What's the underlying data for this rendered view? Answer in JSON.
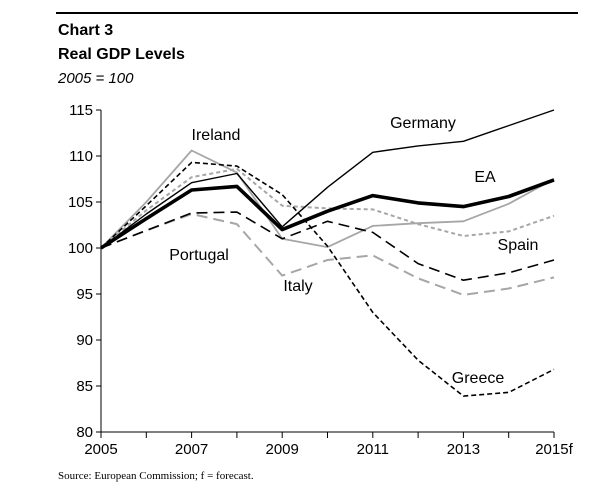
{
  "header": {
    "chart_number": "Chart 3",
    "title": "Real GDP Levels",
    "subtitle": "2005 = 100"
  },
  "source": "Source: European Commission; f = forecast.",
  "chart_data": {
    "type": "line",
    "x": [
      2005,
      2006,
      2007,
      2008,
      2009,
      2010,
      2011,
      2012,
      2013,
      2014,
      2015
    ],
    "x_tick_labels": [
      "2005",
      "2007",
      "2009",
      "2011",
      "2013",
      "2015f"
    ],
    "x_tick_values": [
      2005,
      2007,
      2009,
      2011,
      2013,
      2015
    ],
    "ylim": [
      80,
      115
    ],
    "y_ticks": [
      80,
      85,
      90,
      95,
      100,
      105,
      110,
      115
    ],
    "xlabel": "",
    "ylabel": "",
    "grid": false,
    "series": [
      {
        "name": "Germany",
        "color": "#000000",
        "style": "solid-thin",
        "values": [
          100,
          103.7,
          107.1,
          108.1,
          102.3,
          106.6,
          110.4,
          111.1,
          111.6,
          113.3,
          115.0
        ]
      },
      {
        "name": "EA",
        "color": "#000000",
        "style": "solid-thick",
        "values": [
          100,
          103.2,
          106.3,
          106.7,
          102.0,
          104.0,
          105.7,
          104.9,
          104.5,
          105.6,
          107.4
        ]
      },
      {
        "name": "Ireland",
        "color": "#a6a6a6",
        "style": "solid-gray",
        "values": [
          100,
          105.0,
          110.6,
          108.2,
          101.0,
          100.1,
          102.4,
          102.7,
          102.9,
          104.8,
          107.5
        ]
      },
      {
        "name": "Spain",
        "color": "#a6a6a6",
        "style": "dotted-gray",
        "values": [
          100,
          104.1,
          107.7,
          108.6,
          104.6,
          104.3,
          104.2,
          102.6,
          101.3,
          101.8,
          103.5
        ]
      },
      {
        "name": "Portugal",
        "color": "#000000",
        "style": "long-dash",
        "values": [
          100,
          101.9,
          103.8,
          103.9,
          101.0,
          102.9,
          101.7,
          98.3,
          96.5,
          97.3,
          98.7
        ]
      },
      {
        "name": "Italy",
        "color": "#a6a6a6",
        "style": "long-dash-gray",
        "values": [
          100,
          101.9,
          103.7,
          102.6,
          97.0,
          98.7,
          99.2,
          96.7,
          94.9,
          95.6,
          96.8
        ]
      },
      {
        "name": "Greece",
        "color": "#000000",
        "style": "short-dash",
        "values": [
          100,
          104.6,
          109.3,
          108.9,
          105.8,
          100.2,
          93.0,
          87.8,
          83.9,
          84.3,
          86.8
        ]
      }
    ],
    "series_labels": [
      "Ireland",
      "Germany",
      "EA",
      "Spain",
      "Portugal",
      "Italy",
      "Greece"
    ]
  }
}
